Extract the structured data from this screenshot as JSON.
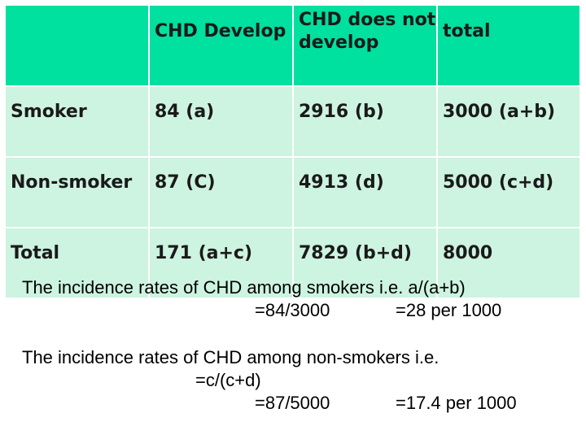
{
  "table": {
    "header": [
      "",
      "CHD Develop",
      "CHD does not\ndevelop",
      "total"
    ],
    "rows": [
      [
        "Smoker",
        "84 (a)",
        "2916 (b)",
        "3000 (a+b)"
      ],
      [
        "Non-smoker",
        "87 (C)",
        "4913 (d)",
        "5000 (c+d)"
      ],
      [
        "Total",
        "171 (a+c)",
        "7829 (b+d)",
        "8000"
      ]
    ]
  },
  "text": {
    "smokers_line1": "The incidence rates of CHD among smokers i.e. a/(a+b)",
    "smokers_line2_a": "=84/3000",
    "smokers_line2_b": "=28 per 1000",
    "nonsmokers_line1": "The incidence rates of CHD among non-smokers i.e.",
    "nonsmokers_line2": "=c/(c+d)",
    "nonsmokers_line3_a": "=87/5000",
    "nonsmokers_line3_b": "=17.4 per 1000"
  },
  "colors": {
    "header_fill": "#00e09e",
    "body_fill": "#cdf3e1"
  }
}
